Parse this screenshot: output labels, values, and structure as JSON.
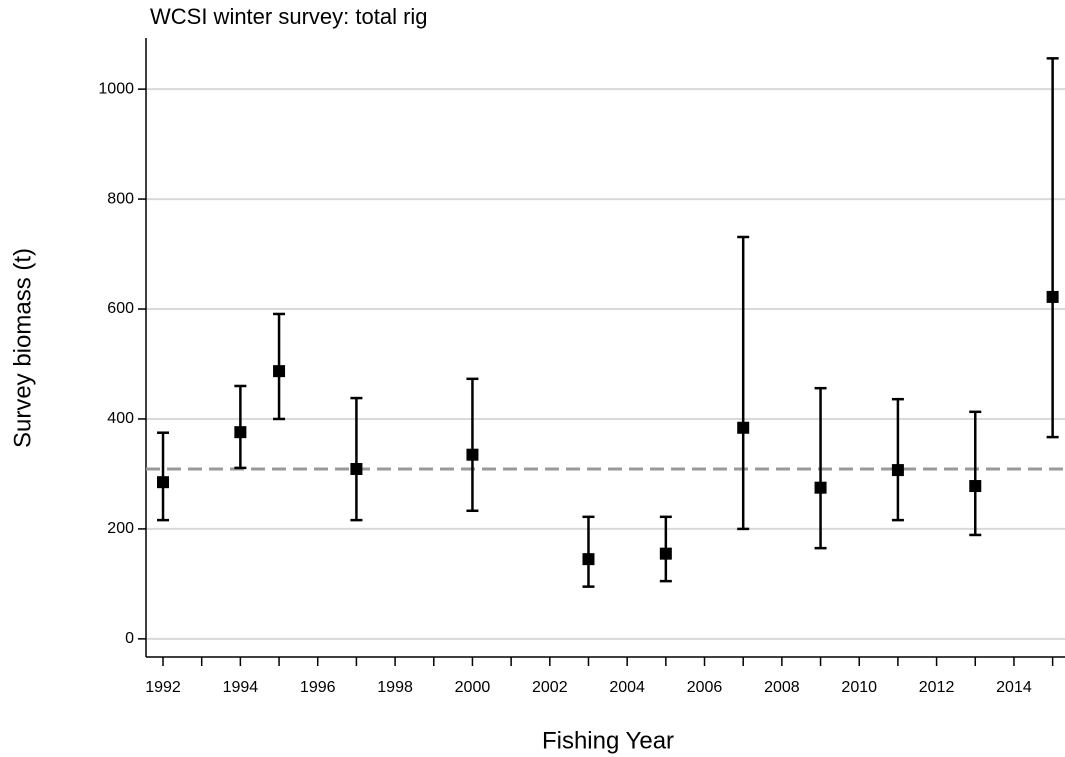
{
  "chart_data": {
    "type": "errorbar",
    "title": "WCSI winter survey: total rig",
    "x_label": "Fishing Year",
    "y_label": "Survey biomass (t)",
    "x": [
      1992,
      1994,
      1995,
      1997,
      2000,
      2003,
      2005,
      2007,
      2009,
      2011,
      2013,
      2015
    ],
    "values": [
      285,
      376,
      487,
      309,
      335,
      145,
      155,
      384,
      275,
      307,
      278,
      622
    ],
    "lower": [
      216,
      311,
      400,
      216,
      233,
      95,
      105,
      200,
      165,
      216,
      189,
      367
    ],
    "upper": [
      375,
      460,
      591,
      438,
      473,
      222,
      222,
      731,
      456,
      436,
      413,
      1056
    ],
    "color": "#000000",
    "reference_line": 309,
    "reference_color": "#999999",
    "xlim": [
      1991.56,
      2015.32
    ],
    "xticks": [
      1992,
      1994,
      1996,
      1998,
      2000,
      2002,
      2004,
      2006,
      2008,
      2010,
      2012,
      2014
    ],
    "xminorticks": [
      1993,
      1995,
      1997,
      1999,
      2001,
      2003,
      2005,
      2007,
      2009,
      2011,
      2013,
      2015
    ],
    "ylim": [
      -33,
      1093
    ],
    "yticks": [
      0,
      200,
      400,
      600,
      800,
      1000
    ],
    "grid": true
  }
}
